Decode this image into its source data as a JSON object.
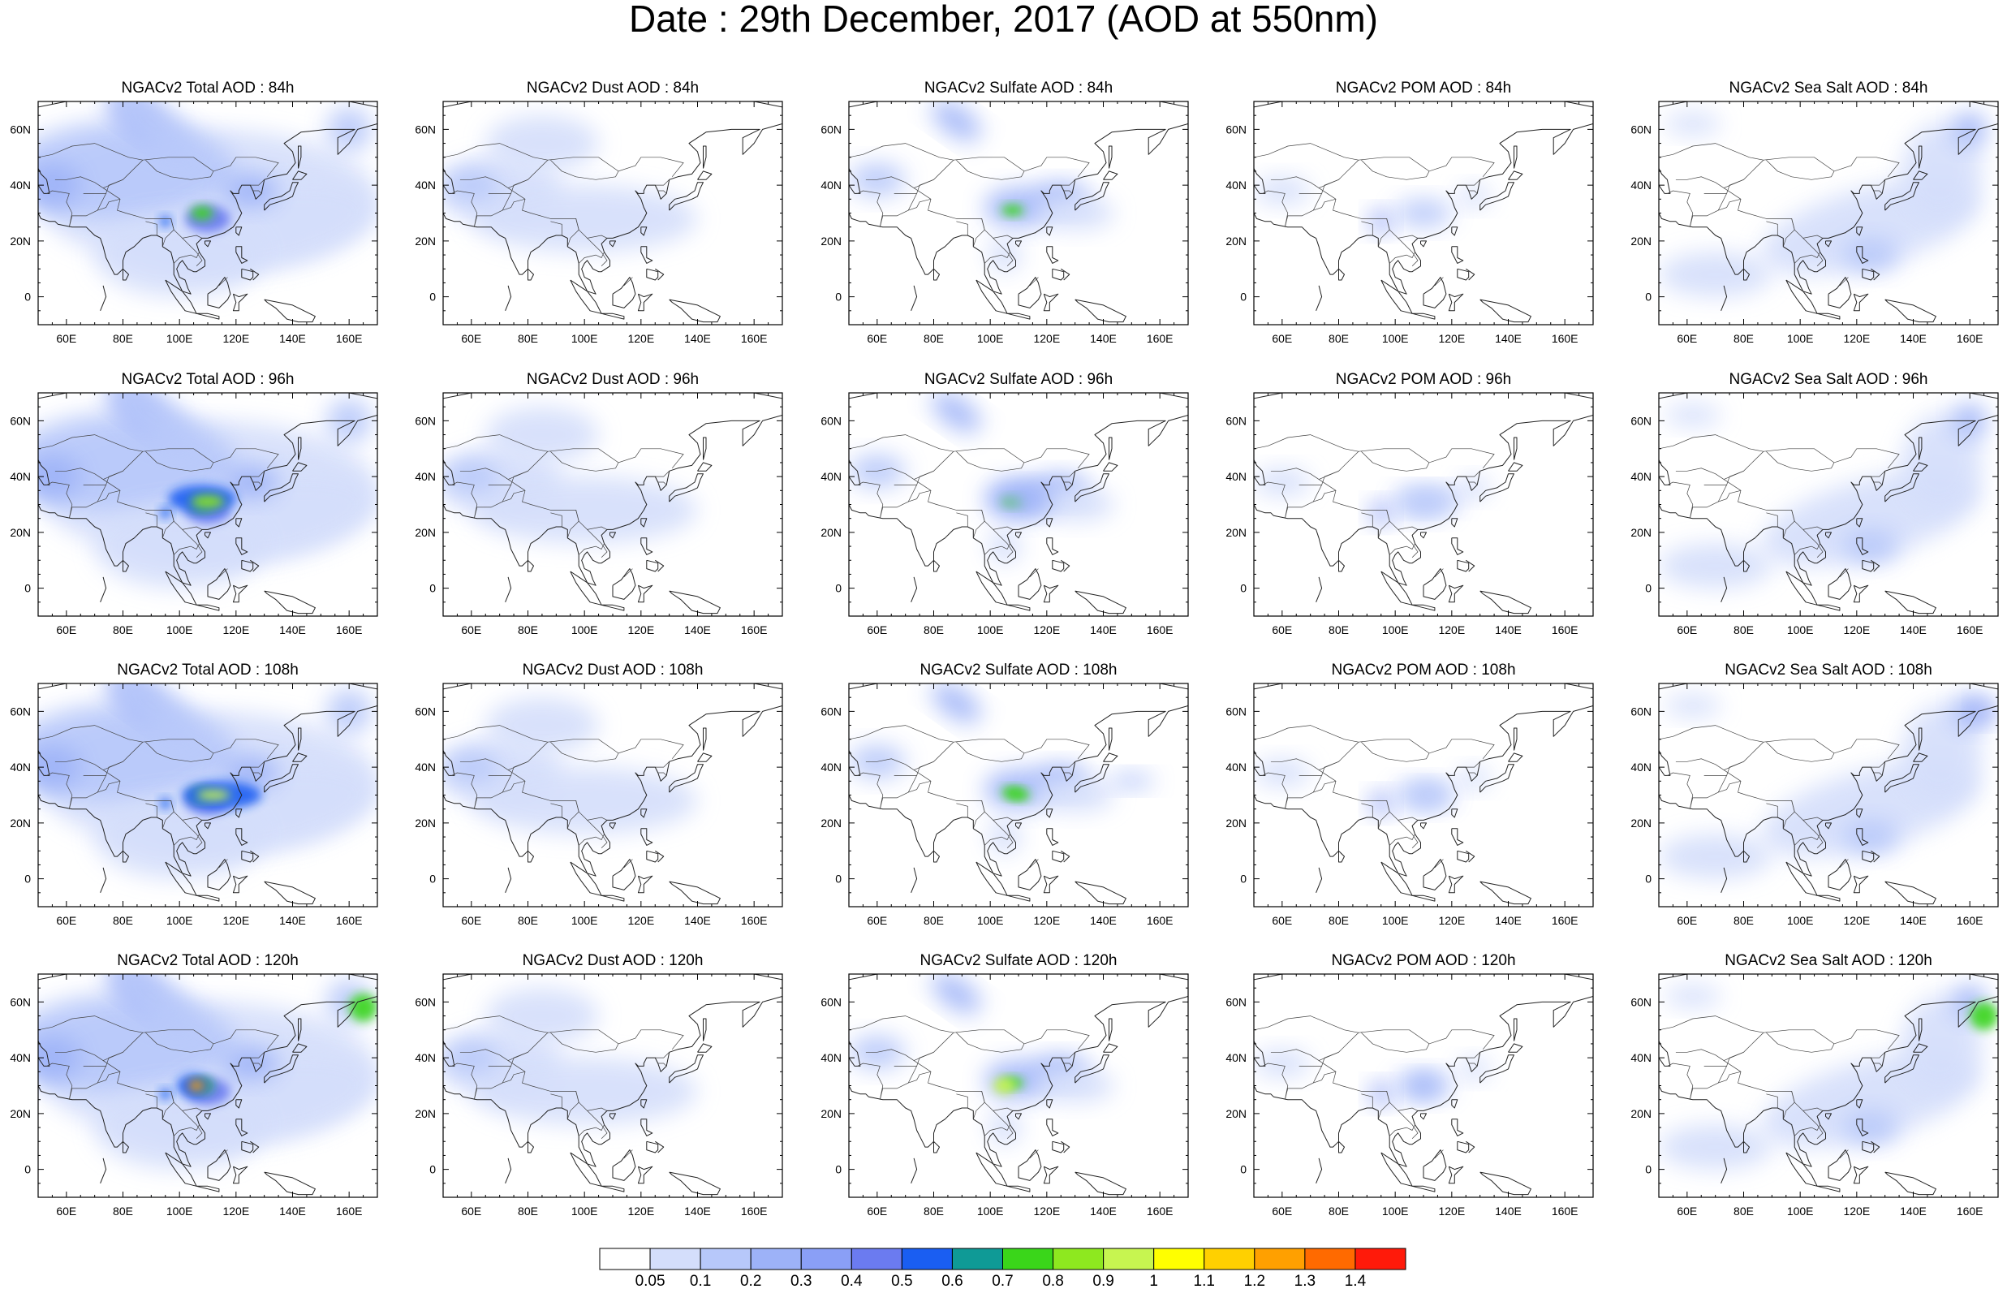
{
  "title": "Date : 29th December, 2017 (AOD at 550nm)",
  "rows": [
    "84h",
    "96h",
    "108h",
    "120h"
  ],
  "panels": [
    [
      "NGACv2 Total AOD : 84h",
      "NGACv2 Dust AOD : 84h",
      "NGACv2 Sulfate AOD : 84h",
      "NGACv2 POM AOD : 84h",
      "NGACv2 Sea Salt AOD : 84h"
    ],
    [
      "NGACv2 Total AOD : 96h",
      "NGACv2 Dust AOD : 96h",
      "NGACv2 Sulfate AOD : 96h",
      "NGACv2 POM AOD : 96h",
      "NGACv2 Sea Salt AOD : 96h"
    ],
    [
      "NGACv2 Total AOD : 108h",
      "NGACv2 Dust AOD : 108h",
      "NGACv2 Sulfate AOD : 108h",
      "NGACv2 POM AOD : 108h",
      "NGACv2 Sea Salt AOD : 108h"
    ],
    [
      "NGACv2 Total AOD : 120h",
      "NGACv2 Dust AOD : 120h",
      "NGACv2 Sulfate AOD : 120h",
      "NGACv2 POM AOD : 120h",
      "NGACv2 Sea Salt  AOD : 120h"
    ]
  ],
  "map": {
    "lon_range": [
      50,
      170
    ],
    "lat_range": [
      -10,
      70
    ],
    "lon_ticks": [
      "60E",
      "80E",
      "100E",
      "120E",
      "140E",
      "160E"
    ],
    "lat_ticks": [
      "60N",
      "40N",
      "20N",
      "0"
    ]
  },
  "colorbar": {
    "labels": [
      "0.05",
      "0.1",
      "0.2",
      "0.3",
      "0.4",
      "0.5",
      "0.6",
      "0.7",
      "0.8",
      "0.9",
      "1",
      "1.1",
      "1.2",
      "1.3",
      "1.4"
    ],
    "colors": [
      "#ffffff",
      "#d4defb",
      "#b7c8fa",
      "#9db2f8",
      "#8a9ff6",
      "#6b7bf0",
      "#1a5ef2",
      "#0f9a96",
      "#3ad61a",
      "#8ee81f",
      "#c7f550",
      "#ffff00",
      "#ffd000",
      "#ffa000",
      "#ff6a00",
      "#ff1a0a"
    ]
  }
}
